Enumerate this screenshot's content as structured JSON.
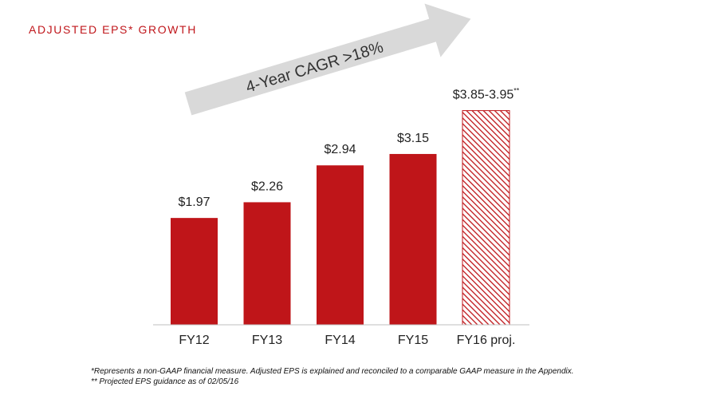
{
  "header": {
    "title": "ADJUSTED EPS* GROWTH"
  },
  "colors": {
    "bar": "#bf1519",
    "arrow": "#d9d9d9",
    "axis": "#bfbfbf",
    "text": "#222222",
    "title": "#c0161b"
  },
  "chart_data": {
    "type": "bar",
    "title": "ADJUSTED EPS* GROWTH",
    "xlabel": "",
    "ylabel": "",
    "categories": [
      "FY12",
      "FY13",
      "FY14",
      "FY15",
      "FY16 proj."
    ],
    "values": [
      1.97,
      2.26,
      2.94,
      3.15,
      3.95
    ],
    "ranges": [
      null,
      null,
      null,
      null,
      [
        3.85,
        3.95
      ]
    ],
    "data_labels": [
      "$1.97",
      "$2.26",
      "$2.94",
      "$3.15",
      "$3.85-3.95"
    ],
    "label_superscripts": [
      "",
      "",
      "",
      "",
      "**"
    ],
    "projected": [
      false,
      false,
      false,
      false,
      true
    ],
    "ylim": [
      0,
      4.15
    ],
    "grid": false,
    "annotation": "4-Year CAGR >18%"
  },
  "footnotes": {
    "note1": "*Represents a non-GAAP financial measure. Adjusted EPS is explained and reconciled to a comparable GAAP measure in the Appendix.",
    "note2": "** Projected EPS guidance as of 02/05/16"
  }
}
